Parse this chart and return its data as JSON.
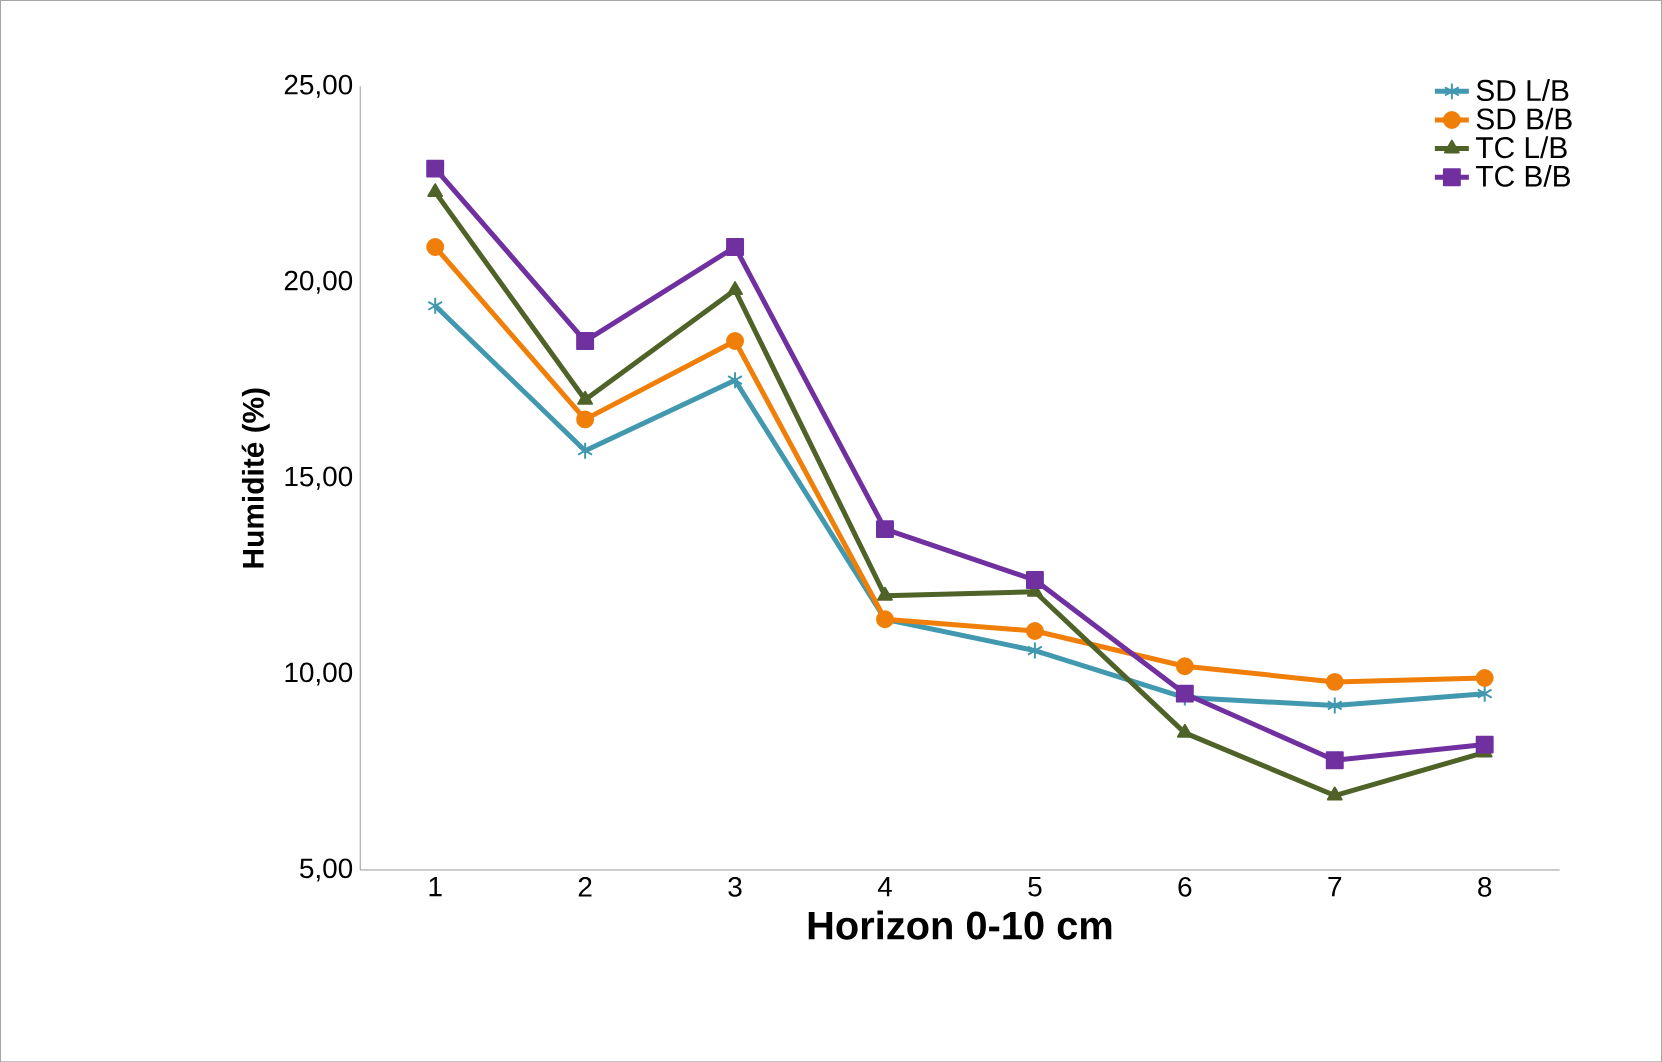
{
  "chart_data": {
    "type": "line",
    "xlabel": "Horizon 0-10 cm",
    "ylabel": "Humidité (%)",
    "categories": [
      "1",
      "2",
      "3",
      "4",
      "5",
      "6",
      "7",
      "8"
    ],
    "ylim": [
      5,
      25
    ],
    "yticks": [
      {
        "value": 5,
        "label": "5,00"
      },
      {
        "value": 10,
        "label": "10,00"
      },
      {
        "value": 15,
        "label": "15,00"
      },
      {
        "value": 20,
        "label": "20,00"
      },
      {
        "value": 25,
        "label": "25,00"
      }
    ],
    "grid": false,
    "legend": "top right",
    "line_style": "solid",
    "series": [
      {
        "name": "SD L/B",
        "color": "#4198af",
        "marker": "cross",
        "values": [
          19.4,
          15.7,
          17.5,
          11.4,
          10.6,
          9.4,
          9.2,
          9.5
        ]
      },
      {
        "name": "SD B/B",
        "color": "#f07f09",
        "marker": "circle",
        "values": [
          20.9,
          16.5,
          18.5,
          11.4,
          11.1,
          10.2,
          9.8,
          9.9
        ]
      },
      {
        "name": "TC L/B",
        "color": "#4f6228",
        "marker": "triangle",
        "values": [
          22.3,
          17.0,
          19.8,
          12.0,
          12.1,
          8.5,
          6.9,
          8.0
        ]
      },
      {
        "name": "TC B/B",
        "color": "#7030a0",
        "marker": "square",
        "values": [
          22.9,
          18.5,
          20.9,
          13.7,
          12.4,
          9.5,
          7.8,
          8.2
        ]
      }
    ]
  }
}
